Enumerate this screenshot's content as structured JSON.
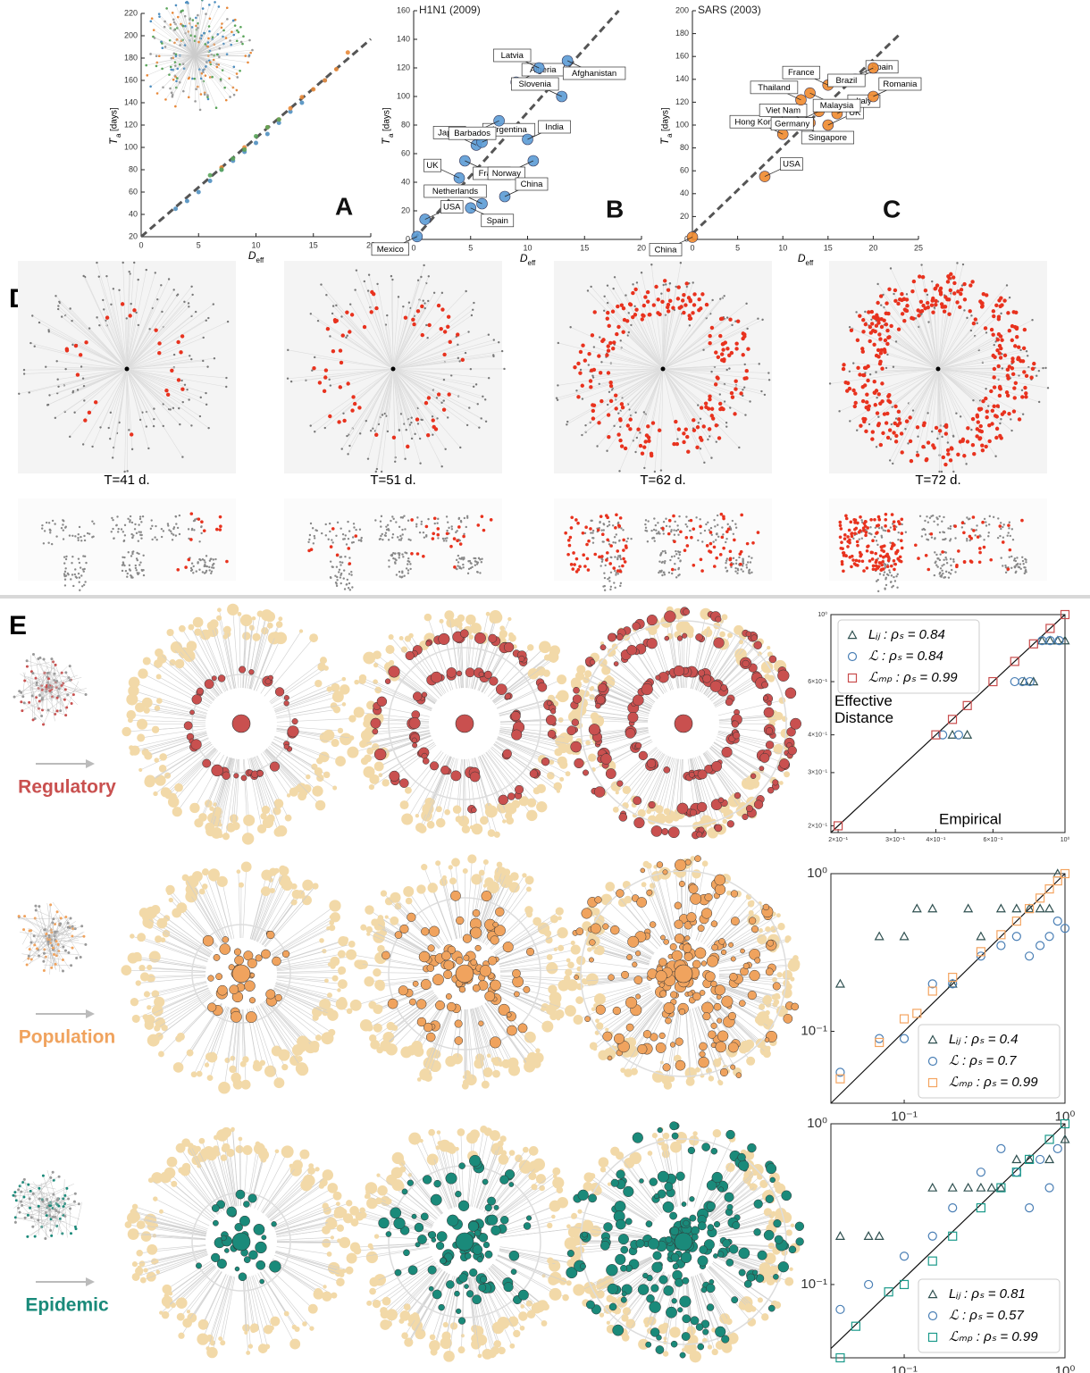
{
  "chart_data": [
    {
      "type": "scatter",
      "panel": "A",
      "x_label": "D",
      "x_label_sub": "eff",
      "y_label": "T",
      "y_label_sub": "a",
      "y_label_unit": "[days]",
      "xlim": [
        0,
        20
      ],
      "ylim": [
        20,
        220
      ],
      "xticks": [
        0,
        5,
        10,
        15,
        20
      ],
      "yticks": [
        20,
        40,
        60,
        80,
        100,
        120,
        140,
        160,
        180,
        200,
        220
      ],
      "reference_line": {
        "x": [
          0,
          20
        ],
        "y": [
          20,
          197
        ]
      },
      "series": [
        {
          "color": "#4f8fc0",
          "marker": "circle",
          "x": [
            3,
            4,
            5,
            6,
            7,
            8,
            9,
            10,
            11,
            12,
            13,
            14,
            16
          ],
          "y": [
            45,
            52,
            60,
            70,
            80,
            88,
            96,
            104,
            112,
            122,
            132,
            140,
            160
          ]
        },
        {
          "color": "#e8893a",
          "marker": "circle",
          "x": [
            7,
            9,
            11,
            12,
            13,
            14,
            15,
            16,
            17,
            18
          ],
          "y": [
            82,
            100,
            118,
            125,
            135,
            145,
            152,
            160,
            170,
            185
          ]
        },
        {
          "color": "#5aa55a",
          "marker": "circle",
          "x": [
            6,
            7,
            8,
            9,
            10,
            11,
            12
          ],
          "y": [
            75,
            80,
            90,
            98,
            110,
            118,
            125
          ]
        }
      ]
    },
    {
      "type": "scatter",
      "panel": "B",
      "title": "H1N1 (2009)",
      "x_label": "D",
      "x_label_sub": "eff",
      "y_label": "T",
      "y_label_sub": "a",
      "y_label_unit": "[days]",
      "xlim": [
        0,
        20
      ],
      "ylim": [
        0,
        160
      ],
      "xticks": [
        0,
        5,
        10,
        15,
        20
      ],
      "yticks": [
        0,
        20,
        40,
        60,
        80,
        100,
        120,
        140,
        160
      ],
      "reference_line": {
        "x": [
          0,
          18
        ],
        "y": [
          0,
          160
        ]
      },
      "series": [
        {
          "color": "#5b9bd5",
          "marker": "circle",
          "labels": [
            "Mexico",
            "USA",
            "UK",
            "France",
            "Japan",
            "Argentina",
            "Barbados",
            "Algeria",
            "Latvia",
            "Afghanistan",
            "Slovenia",
            "India",
            "Norway",
            "China",
            "Netherlands",
            "Spain"
          ],
          "x": [
            0.3,
            1,
            4,
            4.5,
            5.5,
            6,
            7.5,
            9,
            11,
            13.5,
            13,
            10,
            10.5,
            8,
            6,
            5
          ],
          "y": [
            2,
            14,
            43,
            55,
            66,
            68,
            83,
            110,
            120,
            125,
            100,
            70,
            55,
            30,
            25,
            22
          ]
        }
      ]
    },
    {
      "type": "scatter",
      "panel": "C",
      "title": "SARS (2003)",
      "x_label": "D",
      "x_label_sub": "eff",
      "y_label": "T",
      "y_label_sub": "a",
      "y_label_unit": "[days]",
      "xlim": [
        0,
        25
      ],
      "ylim": [
        0,
        200
      ],
      "xticks": [
        0,
        5,
        10,
        15,
        20,
        25
      ],
      "yticks": [
        0,
        20,
        40,
        60,
        80,
        100,
        120,
        140,
        160,
        180,
        200
      ],
      "reference_line": {
        "x": [
          0,
          23
        ],
        "y": [
          5,
          180
        ]
      },
      "series": [
        {
          "color": "#f08a2e",
          "marker": "circle",
          "labels": [
            "China",
            "USA",
            "Hong Kong",
            "Singapore",
            "Viet Nam",
            "UK",
            "Germany",
            "Italy",
            "Thailand",
            "Malaysia",
            "France",
            "Spain",
            "Brazil",
            "Romania"
          ],
          "x": [
            0,
            8,
            10,
            12,
            13,
            15,
            14,
            16,
            12,
            13,
            15,
            18,
            20,
            20
          ],
          "y": [
            2,
            55,
            92,
            100,
            102,
            100,
            112,
            110,
            122,
            128,
            135,
            140,
            150,
            125
          ]
        }
      ]
    },
    {
      "type": "scatter",
      "log_scale": true,
      "x_label": "Empirical",
      "y_label": "Effective Distance",
      "legend": "upper left",
      "xlim": [
        0.19,
        1
      ],
      "ylim": [
        0.19,
        1
      ],
      "xticks": [
        {
          "value": 0.2,
          "label": "2×10⁻¹"
        },
        {
          "value": 0.3,
          "label": "3×10⁻¹"
        },
        {
          "value": 0.4,
          "label": "4×10⁻¹"
        },
        {
          "value": 0.6,
          "label": "6×10⁻¹"
        },
        {
          "value": 1,
          "label": "10⁰"
        }
      ],
      "yticks": [
        {
          "value": 0.2,
          "label": "2×10⁻¹"
        },
        {
          "value": 0.3,
          "label": "3×10⁻¹"
        },
        {
          "value": 0.4,
          "label": "4×10⁻¹"
        },
        {
          "value": 0.6,
          "label": "6×10⁻¹"
        },
        {
          "value": 1,
          "label": "10⁰"
        }
      ],
      "reference_line": {
        "x": [
          0.19,
          1
        ],
        "y": [
          0.19,
          1
        ]
      },
      "series": [
        {
          "name": "Lᵢⱼ : ρₛ = 0.84",
          "color": "#2f5050",
          "marker": "triangle",
          "x": [
            0.45,
            0.5,
            0.75,
            0.8,
            0.85,
            0.9,
            0.95,
            1
          ],
          "y": [
            0.4,
            0.4,
            0.6,
            0.6,
            0.82,
            0.82,
            0.82,
            0.82
          ]
        },
        {
          "name": "ℒ : ρₛ = 0.84",
          "color": "#4a7fb5",
          "marker": "circle",
          "x": [
            0.42,
            0.47,
            0.7,
            0.74,
            0.78,
            0.85,
            0.9,
            0.96
          ],
          "y": [
            0.4,
            0.4,
            0.6,
            0.6,
            0.6,
            0.82,
            0.82,
            0.82
          ]
        },
        {
          "name": "ℒₘₚ : ρₛ = 0.99",
          "color": "#c84b4b",
          "marker": "square",
          "x": [
            0.2,
            0.4,
            0.45,
            0.5,
            0.6,
            0.7,
            0.8,
            0.9,
            1
          ],
          "y": [
            0.2,
            0.4,
            0.45,
            0.5,
            0.6,
            0.7,
            0.8,
            0.9,
            1
          ]
        }
      ]
    },
    {
      "type": "scatter",
      "log_scale": true,
      "legend": "lower right",
      "xlim": [
        0.035,
        1
      ],
      "ylim": [
        0.035,
        1
      ],
      "xticks": [
        {
          "value": 0.1,
          "label": "10⁻¹"
        },
        {
          "value": 1,
          "label": "10⁰"
        }
      ],
      "yticks": [
        {
          "value": 0.1,
          "label": "10⁻¹"
        },
        {
          "value": 1,
          "label": "10⁰"
        }
      ],
      "reference_line": {
        "x": [
          0.035,
          1
        ],
        "y": [
          0.035,
          1
        ]
      },
      "series": [
        {
          "name": "Lᵢⱼ : ρₛ = 0.4",
          "color": "#2f5050",
          "marker": "triangle",
          "x": [
            0.04,
            0.07,
            0.1,
            0.12,
            0.15,
            0.2,
            0.25,
            0.3,
            0.4,
            0.5,
            0.6,
            0.7,
            0.8,
            0.9
          ],
          "y": [
            0.2,
            0.4,
            0.4,
            0.6,
            0.6,
            0.2,
            0.6,
            0.4,
            0.6,
            0.6,
            0.6,
            0.6,
            0.6,
            1
          ]
        },
        {
          "name": "ℒ : ρₛ = 0.7",
          "color": "#4a7fb5",
          "marker": "circle",
          "x": [
            0.04,
            0.07,
            0.1,
            0.15,
            0.2,
            0.3,
            0.4,
            0.5,
            0.6,
            0.7,
            0.8,
            0.9,
            1
          ],
          "y": [
            0.055,
            0.09,
            0.09,
            0.2,
            0.2,
            0.3,
            0.35,
            0.4,
            0.3,
            0.35,
            0.4,
            0.5,
            0.45
          ]
        },
        {
          "name": "ℒₘₚ : ρₛ = 0.99",
          "color": "#f4a460",
          "marker": "square",
          "x": [
            0.04,
            0.07,
            0.1,
            0.12,
            0.15,
            0.2,
            0.3,
            0.4,
            0.5,
            0.6,
            0.7,
            0.8,
            0.9,
            1
          ],
          "y": [
            0.05,
            0.085,
            0.12,
            0.13,
            0.18,
            0.22,
            0.32,
            0.41,
            0.5,
            0.6,
            0.7,
            0.8,
            0.9,
            1
          ]
        }
      ]
    },
    {
      "type": "scatter",
      "log_scale": true,
      "legend": "lower right",
      "xlim": [
        0.035,
        1
      ],
      "ylim": [
        0.035,
        1
      ],
      "xticks": [
        {
          "value": 0.1,
          "label": "10⁻¹"
        },
        {
          "value": 1,
          "label": "10⁰"
        }
      ],
      "yticks": [
        {
          "value": 0.1,
          "label": "10⁻¹"
        },
        {
          "value": 1,
          "label": "10⁰"
        }
      ],
      "reference_line": {
        "x": [
          0.035,
          1
        ],
        "y": [
          0.04,
          1
        ]
      },
      "series": [
        {
          "name": "Lᵢⱼ : ρₛ = 0.81",
          "color": "#2f5050",
          "marker": "triangle",
          "x": [
            0.04,
            0.06,
            0.07,
            0.15,
            0.2,
            0.25,
            0.3,
            0.35,
            0.4,
            0.5,
            0.6,
            0.8,
            1
          ],
          "y": [
            0.2,
            0.2,
            0.2,
            0.4,
            0.4,
            0.4,
            0.4,
            0.4,
            0.4,
            0.6,
            0.6,
            0.6,
            0.8
          ]
        },
        {
          "name": "ℒ : ρₛ = 0.57",
          "color": "#4a7fb5",
          "marker": "circle",
          "x": [
            0.04,
            0.06,
            0.1,
            0.15,
            0.2,
            0.3,
            0.4,
            0.5,
            0.6,
            0.7,
            0.8,
            0.9
          ],
          "y": [
            0.07,
            0.1,
            0.15,
            0.2,
            0.3,
            0.5,
            0.7,
            0.5,
            0.3,
            0.6,
            0.4,
            0.7
          ]
        },
        {
          "name": "ℒₘₚ : ρₛ = 0.99",
          "color": "#1a9a8a",
          "marker": "square",
          "x": [
            0.04,
            0.05,
            0.08,
            0.1,
            0.15,
            0.2,
            0.3,
            0.4,
            0.5,
            0.6,
            0.8,
            1
          ],
          "y": [
            0.035,
            0.055,
            0.09,
            0.1,
            0.14,
            0.2,
            0.3,
            0.4,
            0.5,
            0.6,
            0.8,
            1
          ]
        }
      ]
    }
  ],
  "panel_d": {
    "label": "D",
    "captions": [
      "T=41 d.",
      "T=51 d.",
      "T=62 d.",
      "T=72 d."
    ]
  },
  "panel_e": {
    "label": "E",
    "rows": [
      {
        "label": "Regulatory",
        "color": "#c9504f"
      },
      {
        "label": "Population",
        "color": "#f0a35e"
      },
      {
        "label": "Epidemic",
        "color": "#1a8a7a"
      }
    ]
  }
}
